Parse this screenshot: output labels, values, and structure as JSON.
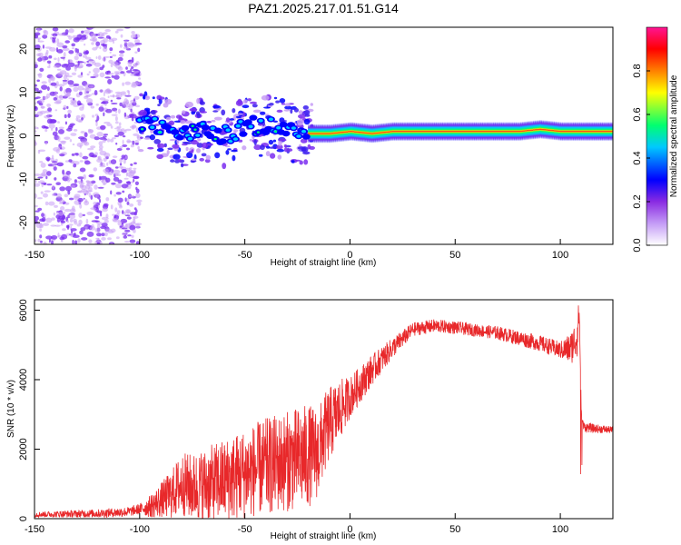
{
  "title": "PAZ1.2025.217.01.51.G14",
  "colors": {
    "snr_line": "#e8282a",
    "ridge": "#e02020",
    "noise_purple": "#7a2cf0",
    "noise_light": "#c79cf6"
  },
  "chart_data": [
    {
      "type": "heatmap",
      "name": "spectrogram",
      "xlabel": "Height of straight line (km)",
      "ylabel": "Frequency (Hz)",
      "xlim": [
        -150,
        125
      ],
      "ylim": [
        -25,
        25
      ],
      "x_ticks": [
        -150,
        -100,
        -50,
        0,
        50,
        100
      ],
      "y_ticks": [
        -20,
        -10,
        0,
        10,
        20
      ],
      "grid": false,
      "colorbar": {
        "label": "Normalized spectral amplitude",
        "range": [
          0,
          1
        ],
        "ticks": [
          0.0,
          0.2,
          0.4,
          0.6,
          0.8
        ],
        "colormap": [
          "#ffffff",
          "#c49cf6",
          "#8a2be2",
          "#0000ff",
          "#00c8ff",
          "#00ff70",
          "#ffff00",
          "#ff8000",
          "#ff0000",
          "#ff1493"
        ]
      },
      "ridge": {
        "x": [
          -100,
          -90,
          -80,
          -70,
          -60,
          -50,
          -40,
          -30,
          -20,
          -10,
          0,
          10,
          20,
          40,
          60,
          80,
          90,
          100,
          110,
          125
        ],
        "frequency_hz": [
          3.5,
          2,
          0,
          1.5,
          0,
          2,
          2.5,
          1,
          0.5,
          0.5,
          1,
          0.5,
          1,
          1,
          1,
          1,
          1.5,
          1,
          1,
          1
        ]
      }
    },
    {
      "type": "line",
      "name": "snr",
      "xlabel": "Height of straight line (km)",
      "ylabel": "SNR (10 * v/v)",
      "xlim": [
        -150,
        125
      ],
      "ylim": [
        0,
        6300
      ],
      "x_ticks": [
        -150,
        -100,
        -50,
        0,
        50,
        100
      ],
      "y_ticks": [
        0,
        2000,
        4000,
        6000
      ],
      "grid": false,
      "envelope": {
        "x": [
          -150,
          -120,
          -105,
          -95,
          -85,
          -80,
          -75,
          -70,
          -60,
          -50,
          -40,
          -30,
          -20,
          -15,
          -13,
          -10,
          -5,
          0,
          10,
          20,
          30,
          40,
          50,
          60,
          70,
          80,
          90,
          100,
          105,
          108,
          109,
          110,
          111,
          115,
          125
        ],
        "y": [
          120,
          150,
          200,
          350,
          700,
          1000,
          900,
          950,
          1100,
          1300,
          1500,
          1650,
          1800,
          1900,
          2300,
          2700,
          3100,
          3500,
          4250,
          4900,
          5450,
          5550,
          5500,
          5420,
          5350,
          5200,
          5050,
          4850,
          4900,
          5250,
          6000,
          3000,
          2650,
          2600,
          2550
        ]
      },
      "noise_amplitude": {
        "x": [
          -150,
          -100,
          -90,
          -80,
          -60,
          -40,
          -20,
          -13,
          -5,
          0,
          20,
          30,
          60,
          100,
          108,
          110,
          125
        ],
        "y": [
          80,
          150,
          500,
          900,
          1200,
          1400,
          1500,
          1200,
          900,
          600,
          300,
          200,
          180,
          250,
          600,
          150,
          100
        ]
      }
    }
  ]
}
